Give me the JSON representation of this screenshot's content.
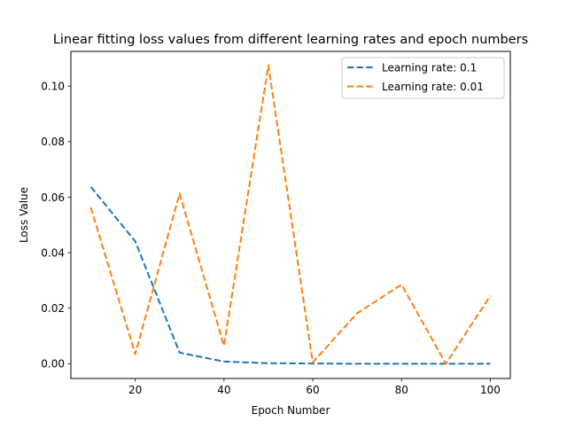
{
  "chart_data": {
    "type": "line",
    "title": "Linear fitting loss values from different learning rates and epoch numbers",
    "xlabel": "Epoch Number",
    "ylabel": "Loss Value",
    "xlim": [
      5.5,
      104.5
    ],
    "ylim": [
      -0.0053,
      0.1125
    ],
    "xticks": [
      20,
      40,
      60,
      80,
      100
    ],
    "yticks": [
      0.0,
      0.02,
      0.04,
      0.06,
      0.08,
      0.1
    ],
    "ytick_labels": [
      "0.00",
      "0.02",
      "0.04",
      "0.06",
      "0.08",
      "0.10"
    ],
    "grid": false,
    "legend_position": "top-right",
    "x": [
      10,
      20,
      30,
      40,
      50,
      60,
      70,
      80,
      90,
      100
    ],
    "series": [
      {
        "name": "Learning rate: 0.1",
        "color": "#1f77b4",
        "line_style": "dashed",
        "values": [
          0.0637,
          0.0441,
          0.004,
          0.0008,
          0.0002,
          0.0001,
          0.0,
          0.0,
          0.0,
          0.0
        ]
      },
      {
        "name": "Learning rate: 0.01",
        "color": "#ff7f0e",
        "line_style": "dashed",
        "values": [
          0.0563,
          0.0035,
          0.0613,
          0.0065,
          0.1075,
          0.0005,
          0.0182,
          0.0285,
          0.0,
          0.0245
        ]
      }
    ]
  }
}
